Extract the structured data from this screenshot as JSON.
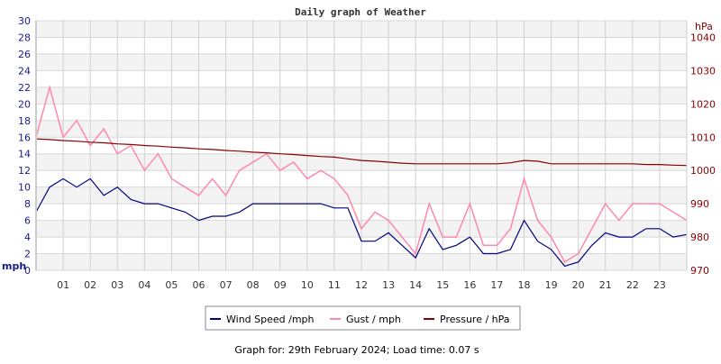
{
  "chart_data": {
    "type": "line",
    "title": "Daily graph of Weather",
    "x_ticks": [
      "01",
      "02",
      "03",
      "04",
      "05",
      "06",
      "07",
      "08",
      "09",
      "10",
      "11",
      "12",
      "13",
      "14",
      "15",
      "16",
      "17",
      "18",
      "19",
      "20",
      "21",
      "22",
      "23"
    ],
    "xlim": [
      0,
      24
    ],
    "left_axis": {
      "label": "mph",
      "ylim": [
        0,
        30
      ],
      "ticks": [
        0,
        2,
        4,
        6,
        8,
        10,
        12,
        14,
        16,
        18,
        20,
        22,
        24,
        26,
        28,
        30
      ],
      "color": "#1a1a8c"
    },
    "right_axis": {
      "label": "hPa",
      "ylim": [
        970,
        1045
      ],
      "ticks": [
        970,
        980,
        990,
        1000,
        1010,
        1020,
        1030,
        1040
      ],
      "color": "#8b0000"
    },
    "grid": true,
    "x_hours": [
      0,
      0.5,
      1,
      1.5,
      2,
      2.5,
      3,
      3.5,
      4,
      4.5,
      5,
      5.5,
      6,
      6.5,
      7,
      7.5,
      8,
      8.5,
      9,
      9.5,
      10,
      10.5,
      11,
      11.5,
      12,
      12.5,
      13,
      13.5,
      14,
      14.5,
      15,
      15.5,
      16,
      16.5,
      17,
      17.5,
      18,
      18.5,
      19,
      19.5,
      20,
      20.5,
      21,
      21.5,
      22,
      22.5,
      23,
      23.5,
      24
    ],
    "series": [
      {
        "name": "Wind Speed /mph",
        "axis": "left",
        "color": "#000080",
        "values": [
          7,
          10,
          11,
          10,
          11,
          9,
          10,
          8.5,
          8,
          8,
          7.5,
          7,
          6,
          6.5,
          6.5,
          7,
          8,
          8,
          8,
          8,
          8,
          8,
          7.5,
          7.5,
          3.5,
          3.5,
          4.5,
          3,
          1.5,
          5,
          2.5,
          3,
          4,
          2,
          2,
          2.5,
          6,
          3.5,
          2.5,
          0.5,
          1,
          3,
          4.5,
          4,
          4,
          5,
          5,
          4,
          4.3
        ]
      },
      {
        "name": "Gust / mph",
        "axis": "left",
        "color": "#ff88aa",
        "values": [
          16,
          22,
          16,
          18,
          15,
          17,
          14,
          15,
          12,
          14,
          11,
          10,
          9,
          11,
          9,
          12,
          13,
          14,
          12,
          13,
          11,
          12,
          11,
          9,
          5,
          7,
          6,
          4,
          2,
          8,
          4,
          4,
          8,
          3,
          3,
          5,
          11,
          6,
          4,
          1,
          2,
          5,
          8,
          6,
          8,
          8,
          8,
          7,
          6
        ]
      },
      {
        "name": "Pressure / hPa",
        "axis": "right",
        "color": "#8b0000",
        "values": [
          1009.5,
          1009.3,
          1009,
          1008.8,
          1008.5,
          1008.3,
          1008,
          1007.8,
          1007.5,
          1007.3,
          1007,
          1006.8,
          1006.5,
          1006.3,
          1006,
          1005.8,
          1005.5,
          1005.3,
          1005,
          1004.8,
          1004.5,
          1004.2,
          1004,
          1003.5,
          1003,
          1002.8,
          1002.5,
          1002.2,
          1002,
          1002,
          1002,
          1002,
          1002,
          1002,
          1002,
          1002.3,
          1003,
          1002.8,
          1002,
          1002,
          1002,
          1002,
          1002,
          1002,
          1002,
          1001.8,
          1001.8,
          1001.6,
          1001.5
        ]
      }
    ]
  },
  "footer": "Graph for: 29th February 2024; Load time: 0.07 s"
}
